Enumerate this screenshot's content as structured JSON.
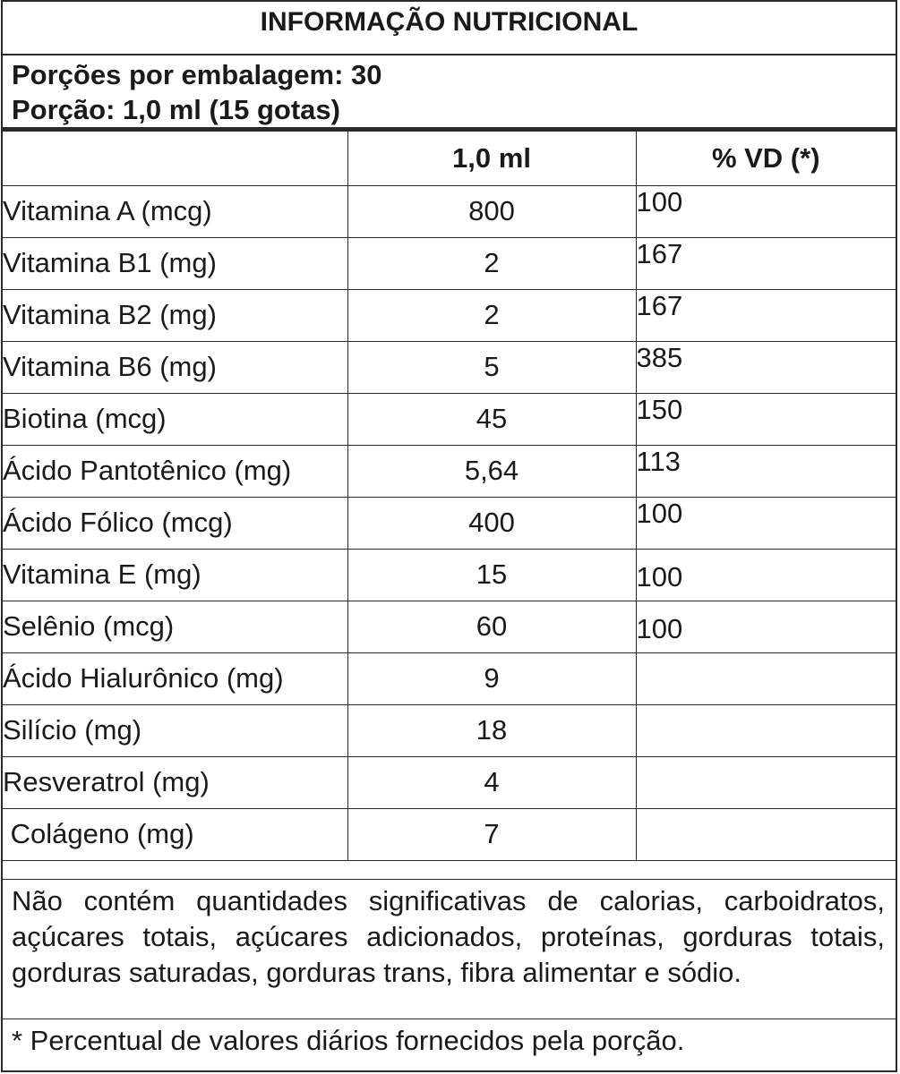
{
  "title": "INFORMAÇÃO NUTRICIONAL",
  "servings_per_package": "Porções por embalagem: 30",
  "serving_size": "Porção: 1,0 ml (15 gotas)",
  "table": {
    "headers": [
      "",
      "1,0 ml",
      "% VD (*)"
    ],
    "rows": [
      {
        "name": "Vitamina A (mcg)",
        "qty": "800",
        "vd": "100"
      },
      {
        "name": "Vitamina B1 (mg)",
        "qty": "2",
        "vd": "167"
      },
      {
        "name": "Vitamina B2 (mg)",
        "qty": "2",
        "vd": "167"
      },
      {
        "name": "Vitamina B6 (mg)",
        "qty": "5",
        "vd": "385"
      },
      {
        "name": "Biotina (mcg)",
        "qty": "45",
        "vd": "150"
      },
      {
        "name": "Ácido Pantotênico (mg)",
        "qty": "5,64",
        "vd": "113"
      },
      {
        "name": "Ácido Fólico (mcg)",
        "qty": "400",
        "vd": "100"
      },
      {
        "name": "Vitamina E (mg)",
        "qty": "15",
        "vd": "100"
      },
      {
        "name": "Selênio (mcg)",
        "qty": "60",
        "vd": "100"
      },
      {
        "name": "Ácido Hialurônico (mg)",
        "qty": "9",
        "vd": ""
      },
      {
        "name": "Silício (mg)",
        "qty": "18",
        "vd": ""
      },
      {
        "name": "Resveratrol (mg)",
        "qty": "4",
        "vd": ""
      },
      {
        "name": " Colágeno (mg)",
        "qty": "7",
        "vd": ""
      }
    ]
  },
  "disclaimer": "Não contém quantidades significativas de calorias, carboidratos, açúcares totais, açúcares adicionados, proteínas, gorduras totais, gorduras saturadas, gorduras trans, fibra alimentar e sódio.",
  "vd_note": "* Percentual de valores diários fornecidos pela porção."
}
